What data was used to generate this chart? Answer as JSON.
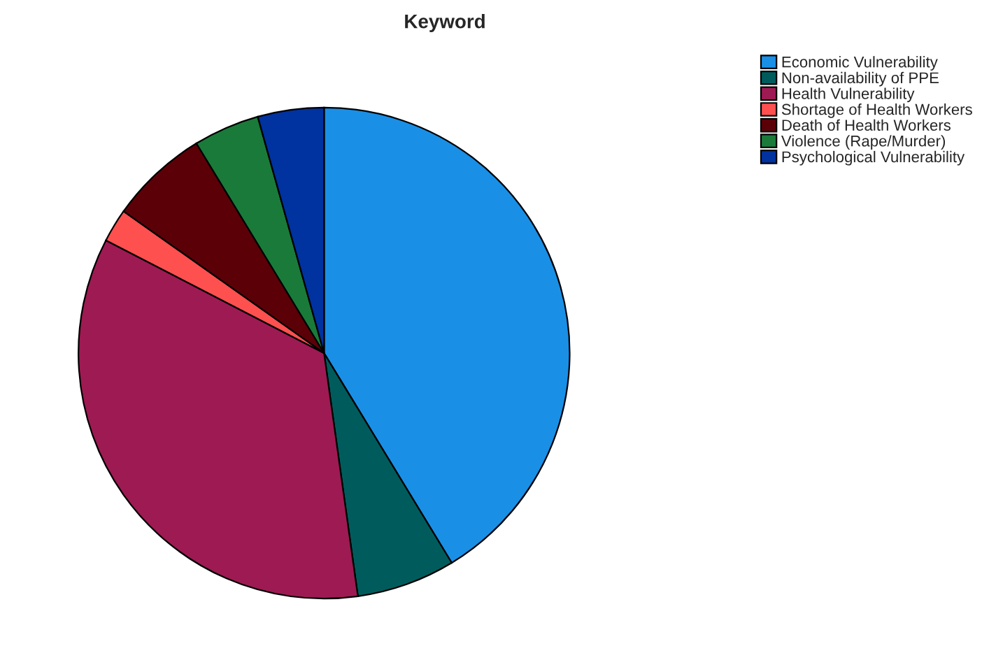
{
  "chart_data": {
    "type": "pie",
    "title": "Keyword",
    "categories": [
      "Economic Vulnerability",
      "Non-availability of PPE",
      "Health Vulnerability",
      "Shortage of Health Workers",
      "Death of Health Workers",
      "Violence (Rape/Murder)",
      "Psychological Vulnerability"
    ],
    "values": [
      41.3,
      6.5,
      34.8,
      2.2,
      6.5,
      4.35,
      4.35
    ],
    "colors": [
      "#1a8fe6",
      "#005c5c",
      "#9e1a52",
      "#ff5050",
      "#5c0008",
      "#1a7a3a",
      "#0032a0"
    ],
    "legend": "top right"
  }
}
